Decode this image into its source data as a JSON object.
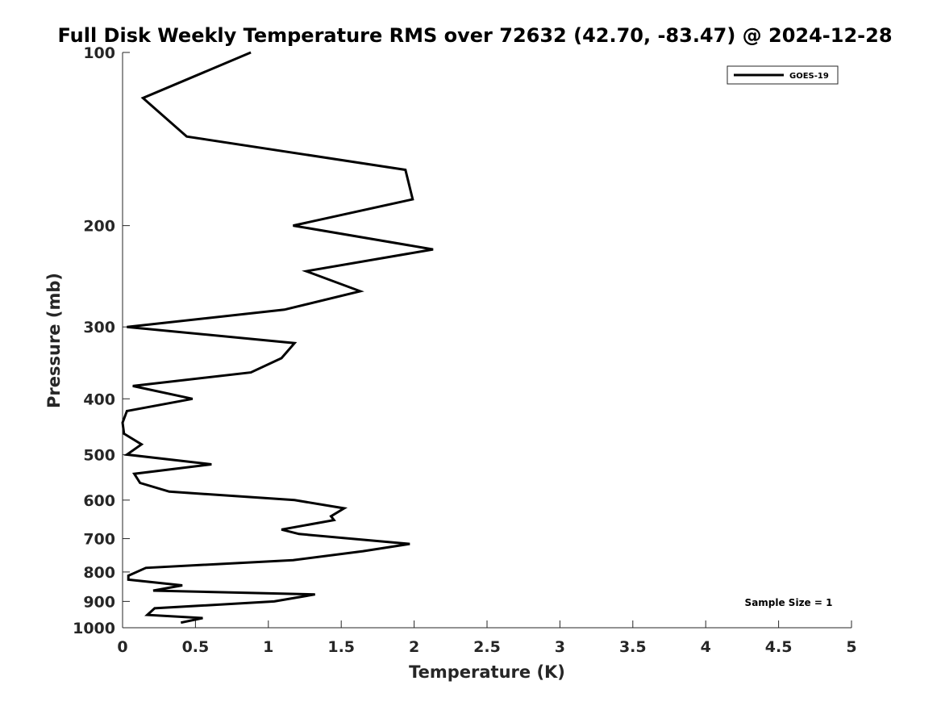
{
  "chart_data": {
    "type": "line",
    "title": "Full Disk Weekly Temperature RMS over 72632 (42.70, -83.47) @ 2024-12-28",
    "xlabel": "Temperature (K)",
    "ylabel": "Pressure (mb)",
    "xlim": [
      0,
      5
    ],
    "ylim": [
      100,
      1000
    ],
    "y_scale": "log",
    "y_reversed": true,
    "grid": false,
    "legend_position": "top-right",
    "x_ticks": [
      "0",
      "0.5",
      "1",
      "1.5",
      "2",
      "2.5",
      "3",
      "3.5",
      "4",
      "4.5",
      "5"
    ],
    "y_ticks": [
      "100",
      "200",
      "300",
      "400",
      "500",
      "600",
      "700",
      "800",
      "900",
      "1000"
    ],
    "series": [
      {
        "name": "GOES-19",
        "color": "#000000",
        "points": [
          [
            0.88,
            100
          ],
          [
            0.14,
            120
          ],
          [
            0.44,
            140
          ],
          [
            1.94,
            160
          ],
          [
            1.99,
            180
          ],
          [
            1.17,
            200
          ],
          [
            2.13,
            220
          ],
          [
            1.26,
            240
          ],
          [
            1.63,
            260
          ],
          [
            1.11,
            280
          ],
          [
            0.03,
            300
          ],
          [
            1.18,
            320
          ],
          [
            1.09,
            340
          ],
          [
            0.88,
            360
          ],
          [
            0.07,
            380
          ],
          [
            0.48,
            400
          ],
          [
            0.03,
            420
          ],
          [
            0.0,
            440
          ],
          [
            0.01,
            460
          ],
          [
            0.13,
            480
          ],
          [
            0.03,
            500
          ],
          [
            0.61,
            520
          ],
          [
            0.08,
            540
          ],
          [
            0.12,
            560
          ],
          [
            0.32,
            580
          ],
          [
            1.18,
            600
          ],
          [
            1.52,
            620
          ],
          [
            1.43,
            640
          ],
          [
            1.45,
            650
          ],
          [
            1.09,
            675
          ],
          [
            1.21,
            687
          ],
          [
            1.97,
            715
          ],
          [
            1.65,
            736
          ],
          [
            1.17,
            763
          ],
          [
            0.16,
            787
          ],
          [
            0.04,
            812
          ],
          [
            0.04,
            825
          ],
          [
            0.41,
            844
          ],
          [
            0.21,
            862
          ],
          [
            1.32,
            875
          ],
          [
            1.04,
            900
          ],
          [
            0.22,
            925
          ],
          [
            0.17,
            950
          ],
          [
            0.55,
            962
          ],
          [
            0.4,
            980
          ]
        ]
      }
    ],
    "annotation": "Sample Size = 1"
  }
}
